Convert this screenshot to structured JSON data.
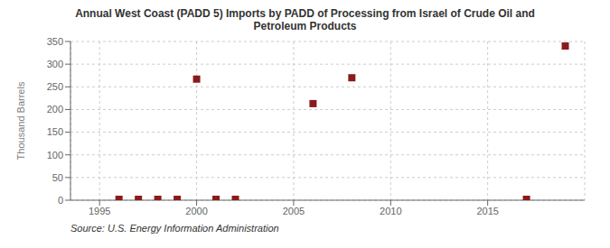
{
  "chart_data": {
    "type": "scatter",
    "title": "Annual West Coast (PADD 5) Imports by PADD of Processing from Israel of Crude Oil and\nPetroleum Products",
    "ylabel": "Thousand Barrels",
    "source": "Source: U.S. Energy Information Administration",
    "x": [
      1996,
      1997,
      1998,
      1999,
      2000,
      2001,
      2002,
      2006,
      2008,
      2017,
      2019
    ],
    "values": [
      2,
      2,
      2,
      2,
      267,
      2,
      2,
      213,
      270,
      2,
      340
    ],
    "color": "#8b1a1a",
    "marker": "square",
    "xlim": [
      1993.5,
      2020
    ],
    "ylim": [
      0,
      350
    ],
    "xticks": [
      1995,
      2000,
      2005,
      2010,
      2015
    ],
    "yticks": [
      0,
      50,
      100,
      150,
      200,
      250,
      300,
      350
    ],
    "grid": true
  }
}
